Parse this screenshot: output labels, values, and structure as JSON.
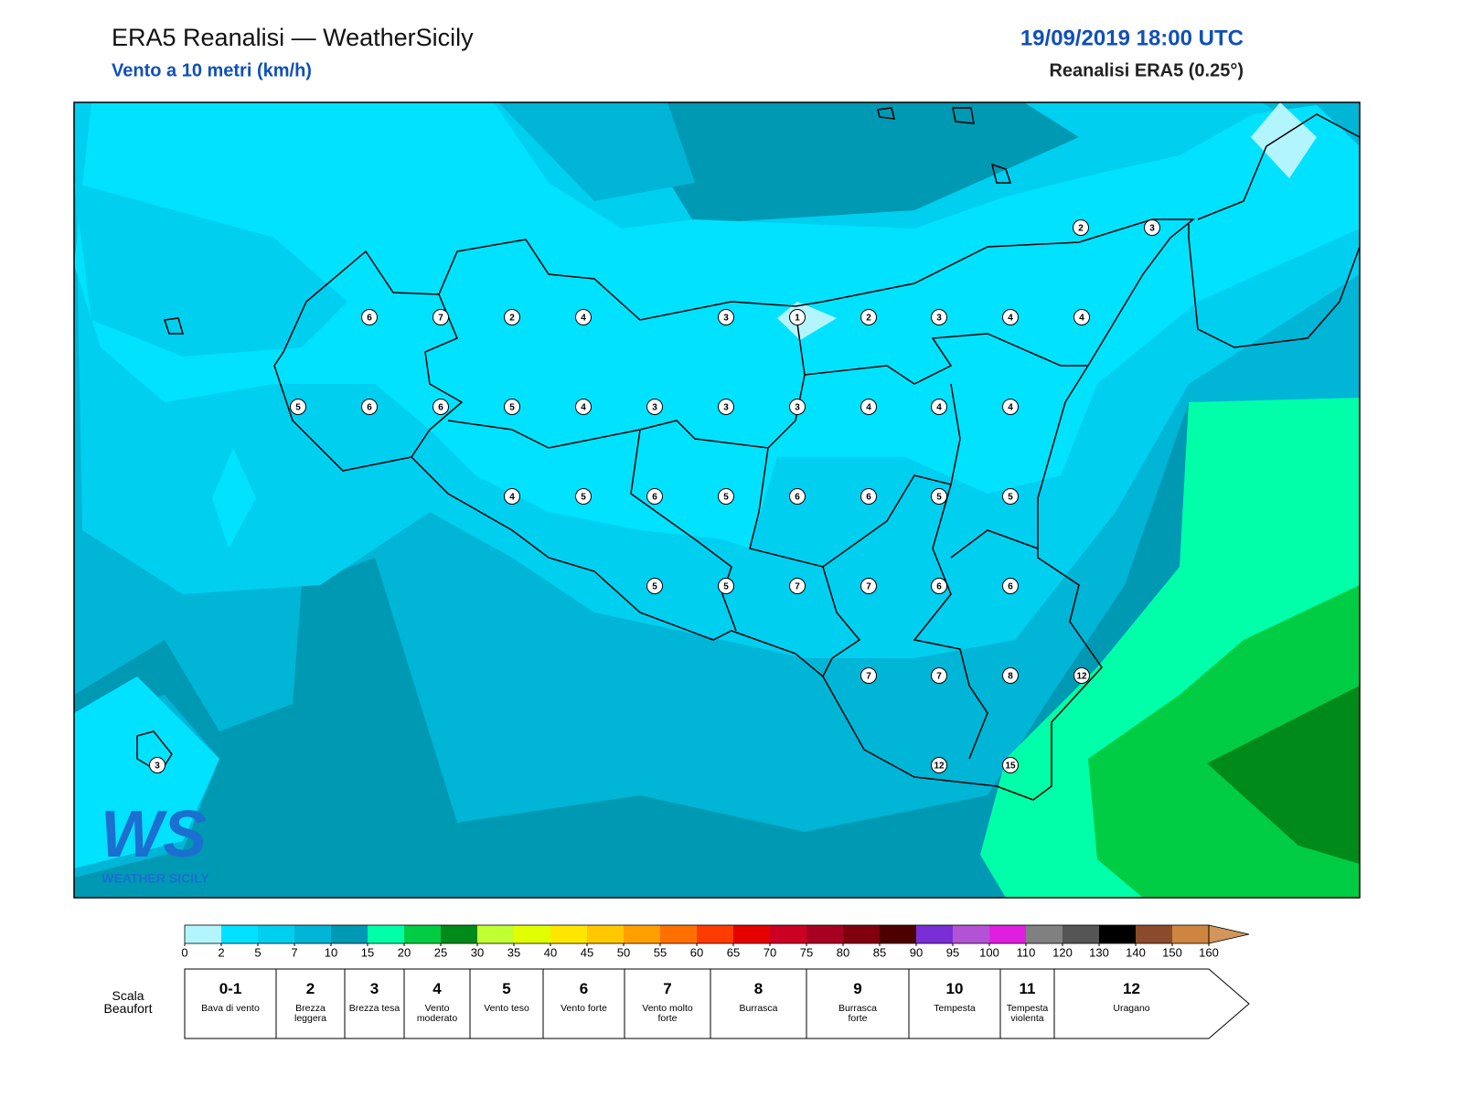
{
  "header": {
    "title": "ERA5 Reanalisi — WeatherSicily",
    "subtitle": "Vento a 10 metri (km/h)",
    "datetime": "19/09/2019 18:00 UTC",
    "source": "Reanalisi ERA5 (0.25°)"
  },
  "stations": {
    "values": [
      2,
      3,
      6,
      7,
      2,
      4,
      3,
      1,
      2,
      3,
      4,
      4,
      5,
      6,
      6,
      5,
      4,
      3,
      3,
      3,
      4,
      4,
      4,
      4,
      5,
      6,
      5,
      6,
      6,
      5,
      5,
      5,
      5,
      7,
      7,
      6,
      6,
      7,
      7,
      8,
      12,
      3,
      12,
      15
    ]
  },
  "colorbar": {
    "ticks": [
      0,
      2,
      5,
      7,
      10,
      15,
      20,
      25,
      30,
      35,
      40,
      45,
      50,
      55,
      60,
      65,
      70,
      75,
      80,
      85,
      90,
      95,
      100,
      110,
      120,
      130,
      140,
      150,
      160
    ],
    "colors": [
      "#b3f5ff",
      "#00e2ff",
      "#00cff0",
      "#00b5d6",
      "#0099b3",
      "#00ffa8",
      "#00cc44",
      "#008a1a",
      "#c0ff33",
      "#e0ff00",
      "#ffe600",
      "#ffc800",
      "#ffa000",
      "#ff7000",
      "#ff3c00",
      "#e60000",
      "#cc0022",
      "#a80020",
      "#800010",
      "#4d0000",
      "#7a2ed6",
      "#b452d6",
      "#e01ee0",
      "#808080",
      "#555555",
      "#000000",
      "#8b4a2b",
      "#cd853f"
    ],
    "extend_color": "#d2955a"
  },
  "beaufort": {
    "label": "Scala Beaufort",
    "levels": [
      {
        "force": "0-1",
        "description": "Bava di vento"
      },
      {
        "force": 2,
        "description": "Brezza leggera"
      },
      {
        "force": 3,
        "description": "Brezza tesa"
      },
      {
        "force": 4,
        "description": "Vento moderato"
      },
      {
        "force": 5,
        "description": "Vento teso"
      },
      {
        "force": 6,
        "description": "Vento forte"
      },
      {
        "force": 7,
        "description": "Vento molto forte"
      },
      {
        "force": 8,
        "description": "Burrasca"
      },
      {
        "force": 9,
        "description": "Burrasca forte"
      },
      {
        "force": 10,
        "description": "Tempesta"
      },
      {
        "force": 11,
        "description": "Tempesta violenta"
      },
      {
        "force": 12,
        "description": "Uragano"
      }
    ]
  },
  "logo": {
    "mark": "WS",
    "name": "WEATHER SICILY"
  }
}
